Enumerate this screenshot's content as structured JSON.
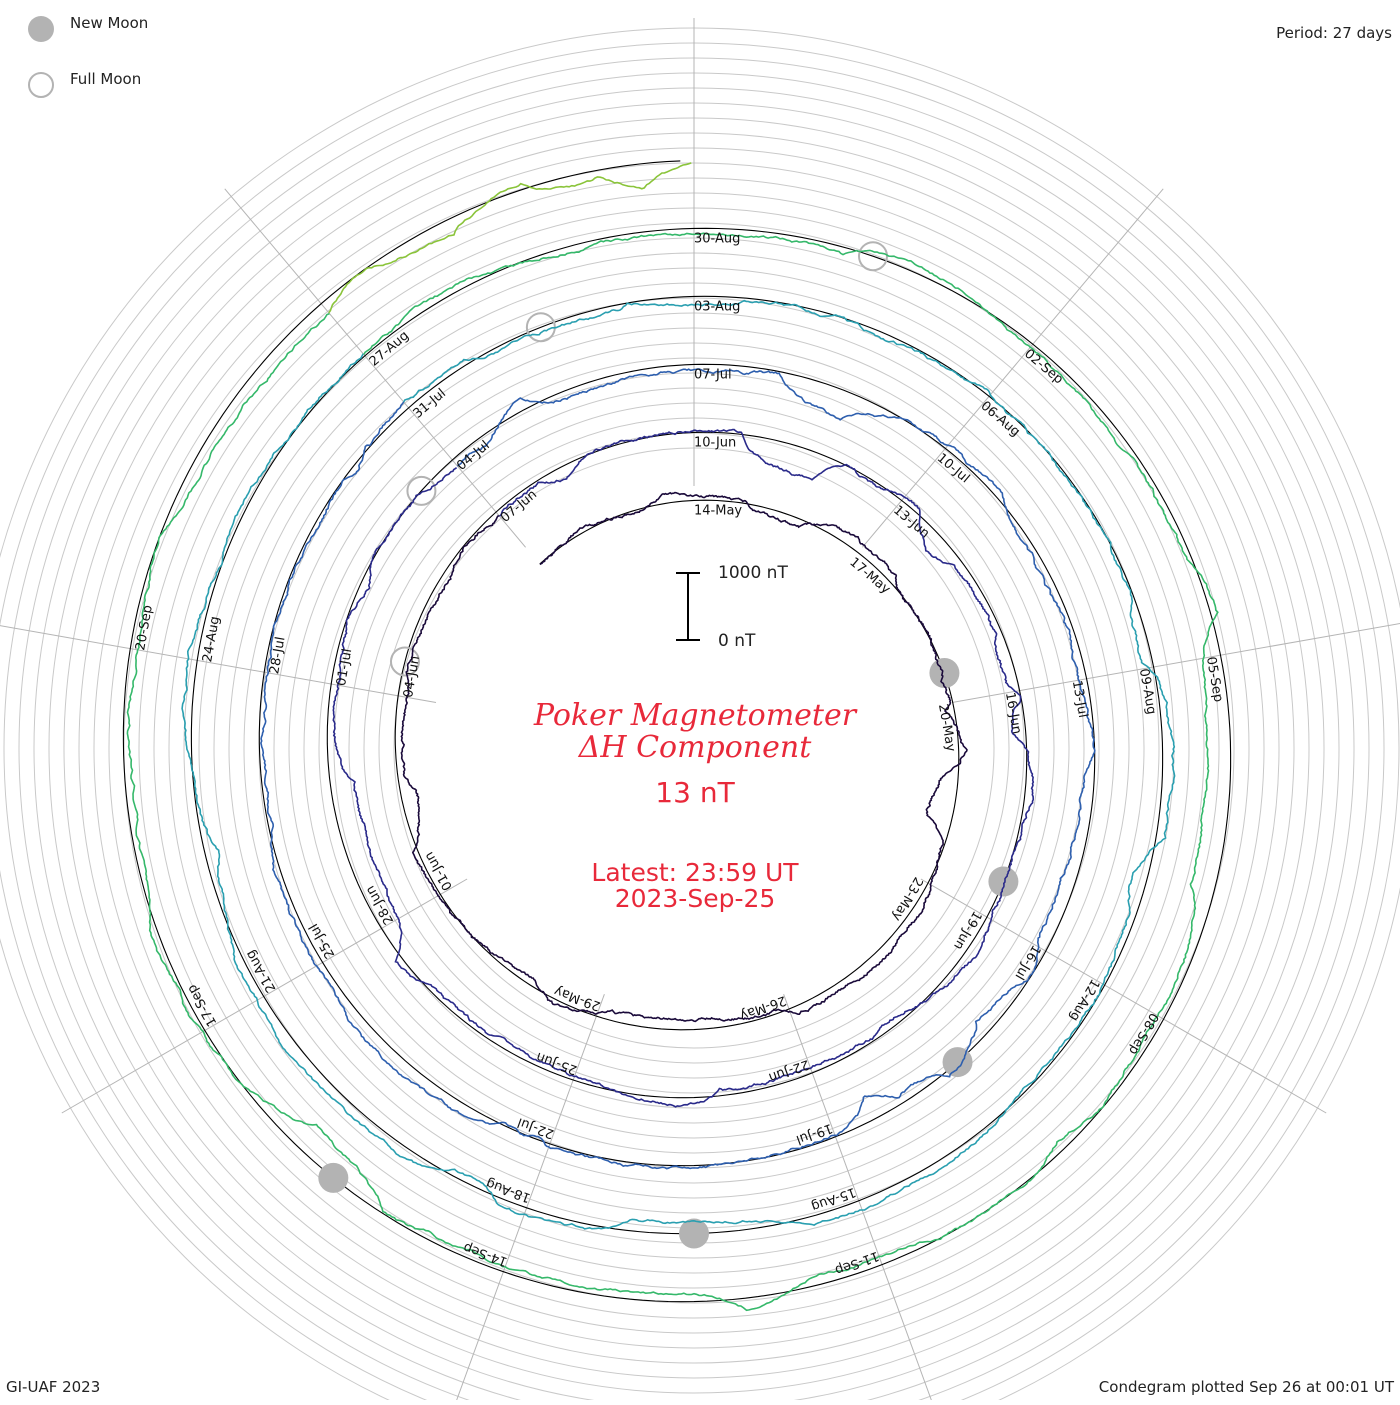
{
  "header": {
    "period_label": "Period: 27 days"
  },
  "legend": {
    "new_moon_label": "New Moon",
    "full_moon_label": "Full Moon",
    "new_moon_color": "#b3b3b3",
    "full_moon_color": "#b3b3b3"
  },
  "footer": {
    "left": "GI-UAF 2023",
    "right": "Condegram plotted Sep 26 at 00:01 UT"
  },
  "center": {
    "title_line1": "Poker Magnetometer",
    "title_line2": "ΔH Component",
    "current_value": "13 nT",
    "latest_line1": "Latest: 23:59 UT",
    "latest_line2": "2023-Sep-25",
    "title_color": "#e8293a"
  },
  "scale_bar": {
    "top_label": "1000 nT",
    "bottom_label": "0 nT"
  },
  "chart_data": {
    "type": "line",
    "subtype": "spiral condegram",
    "period_days": 27,
    "start_date": "2023-05-11",
    "end_date": "2023-09-25",
    "unit": "nT",
    "grid": true,
    "series_colors": [
      "#1a0a3a",
      "#2a2a8a",
      "#2e5fae",
      "#2a9fb0",
      "#35b86a",
      "#8ac43a",
      "#c8a020",
      "#c86a10",
      "#b82010"
    ],
    "date_labels": [
      "14-May",
      "17-May",
      "20-May",
      "23-May",
      "26-May",
      "29-May",
      "01-Jun",
      "04-Jun",
      "07-Jun",
      "10-Jun",
      "13-Jun",
      "16-Jun",
      "19-Jun",
      "22-Jun",
      "25-Jun",
      "28-Jun",
      "01-Jul",
      "04-Jul",
      "07-Jul",
      "10-Jul",
      "13-Jul",
      "16-Jul",
      "19-Jul",
      "22-Jul",
      "25-Jul",
      "28-Jul",
      "31-Jul",
      "03-Aug",
      "06-Aug",
      "09-Aug",
      "12-Aug",
      "15-Aug",
      "18-Aug",
      "21-Aug",
      "24-Aug",
      "27-Aug",
      "30-Aug",
      "02-Sep",
      "05-Sep",
      "08-Sep",
      "11-Sep",
      "14-Sep",
      "17-Sep",
      "20-Sep"
    ],
    "new_moons": [
      "2023-05-19",
      "2023-06-18",
      "2023-07-17",
      "2023-08-16",
      "2023-09-15"
    ],
    "full_moons": [
      "2023-06-04",
      "2023-07-03",
      "2023-08-01",
      "2023-08-31"
    ]
  }
}
